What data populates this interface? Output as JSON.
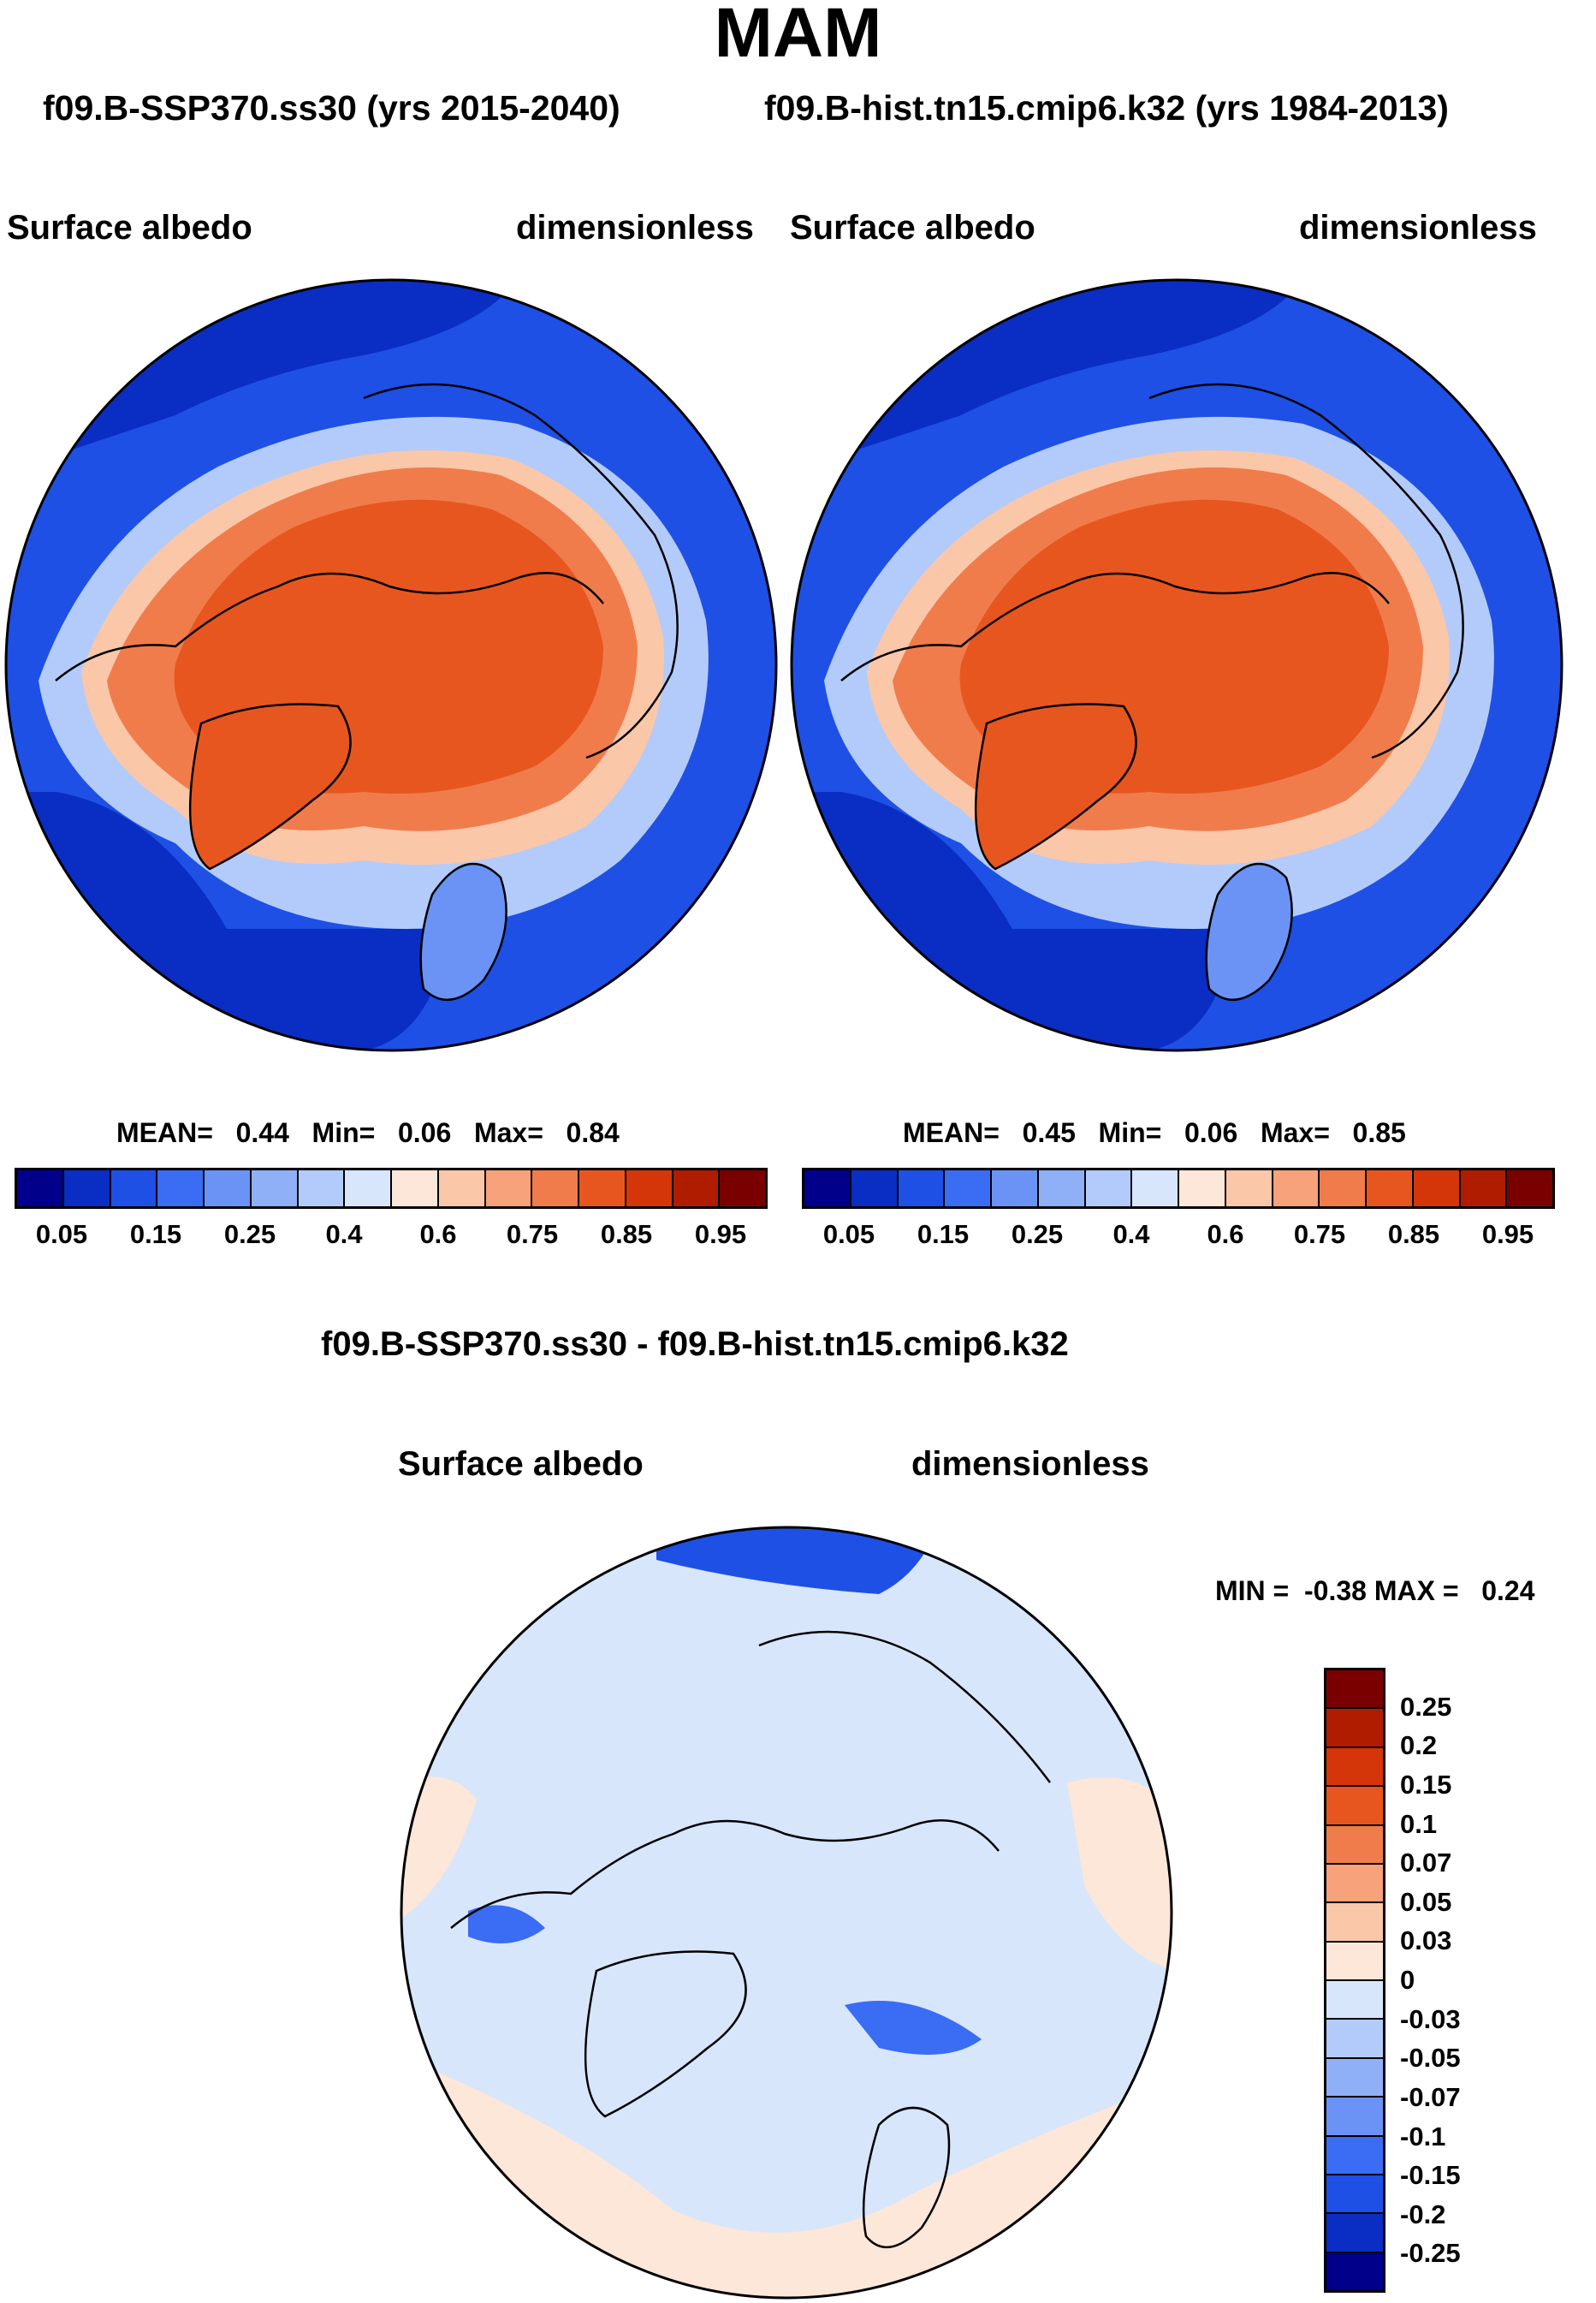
{
  "figure": {
    "title": "MAM",
    "subtitle_left": "f09.B-SSP370.ss30 (yrs 2015-2040)",
    "subtitle_right": "f09.B-hist.tn15.cmip6.k32 (yrs 1984-2013)",
    "diff_title": "f09.B-SSP370.ss30 - f09.B-hist.tn15.cmip6.k32"
  },
  "panels": {
    "left": {
      "variable": "Surface albedo",
      "units": "dimensionless",
      "stats": {
        "mean_label": "MEAN=",
        "mean": "0.44",
        "min_label": "Min=",
        "min": "0.06",
        "max_label": "Max=",
        "max": "0.84"
      }
    },
    "right": {
      "variable": "Surface albedo",
      "units": "dimensionless",
      "stats": {
        "mean_label": "MEAN=",
        "mean": "0.45",
        "min_label": "Min=",
        "min": "0.06",
        "max_label": "Max=",
        "max": "0.85"
      }
    },
    "diff": {
      "variable": "Surface albedo",
      "units": "dimensionless",
      "minmax_label": "MIN =  -0.38 MAX =   0.24"
    }
  },
  "colorbar_abs": {
    "colors": [
      "#00008b",
      "#0a2dc4",
      "#1e50e6",
      "#3a6cf4",
      "#6b93f5",
      "#8fb0f7",
      "#b3cbfa",
      "#d7e6fb",
      "#fde7d8",
      "#fbc7a9",
      "#f7a27a",
      "#f07c4c",
      "#e8561f",
      "#d4360a",
      "#b01c00",
      "#7a0000"
    ],
    "ticks": [
      "0.05",
      "0.15",
      "0.25",
      "0.4",
      "0.6",
      "0.75",
      "0.85",
      "0.95"
    ]
  },
  "colorbar_diff": {
    "colors": [
      "#7a0000",
      "#b01c00",
      "#d4360a",
      "#e8561f",
      "#f07c4c",
      "#f7a27a",
      "#fbc7a9",
      "#fde7d8",
      "#d7e6fb",
      "#b3cbfa",
      "#8fb0f7",
      "#6b93f5",
      "#3a6cf4",
      "#1e50e6",
      "#0a2dc4",
      "#00008b"
    ],
    "ticks": [
      "0.25",
      "0.2",
      "0.15",
      "0.1",
      "0.07",
      "0.05",
      "0.03",
      "0",
      "-0.03",
      "-0.05",
      "-0.07",
      "-0.1",
      "-0.15",
      "-0.2",
      "-0.25"
    ]
  },
  "map_colors": {
    "ocean_low": "#0a2dc4",
    "ocean_mid": "#1e50e6",
    "ice_high": "#e8561f",
    "ice_mid": "#f07c4c",
    "transition": "#fbc7a9",
    "light_blue": "#b3cbfa",
    "diff_bg": "#d7e6fb",
    "diff_pos": "#fde7d8",
    "diff_neg": "#1e50e6"
  }
}
